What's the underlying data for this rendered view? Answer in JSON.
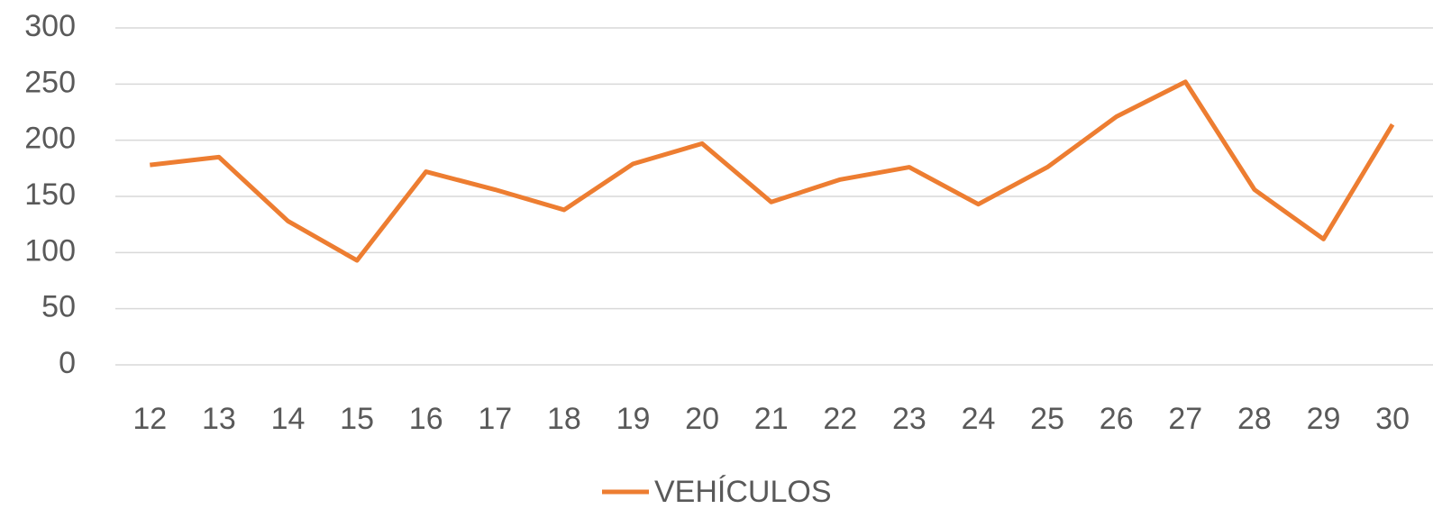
{
  "chart_data": {
    "type": "line",
    "categories": [
      "12",
      "13",
      "14",
      "15",
      "16",
      "17",
      "18",
      "19",
      "20",
      "21",
      "22",
      "23",
      "24",
      "25",
      "26",
      "27",
      "28",
      "29",
      "30"
    ],
    "series": [
      {
        "name": "VEHÍCULOS",
        "color": "#ed7d31",
        "values": [
          178,
          185,
          128,
          93,
          172,
          156,
          138,
          179,
          197,
          145,
          165,
          176,
          143,
          176,
          221,
          252,
          156,
          112,
          214
        ]
      }
    ],
    "ylim": [
      0,
      300
    ],
    "yticks": [
      0,
      50,
      100,
      150,
      200,
      250,
      300
    ],
    "grid": true,
    "legend": "bottom"
  }
}
